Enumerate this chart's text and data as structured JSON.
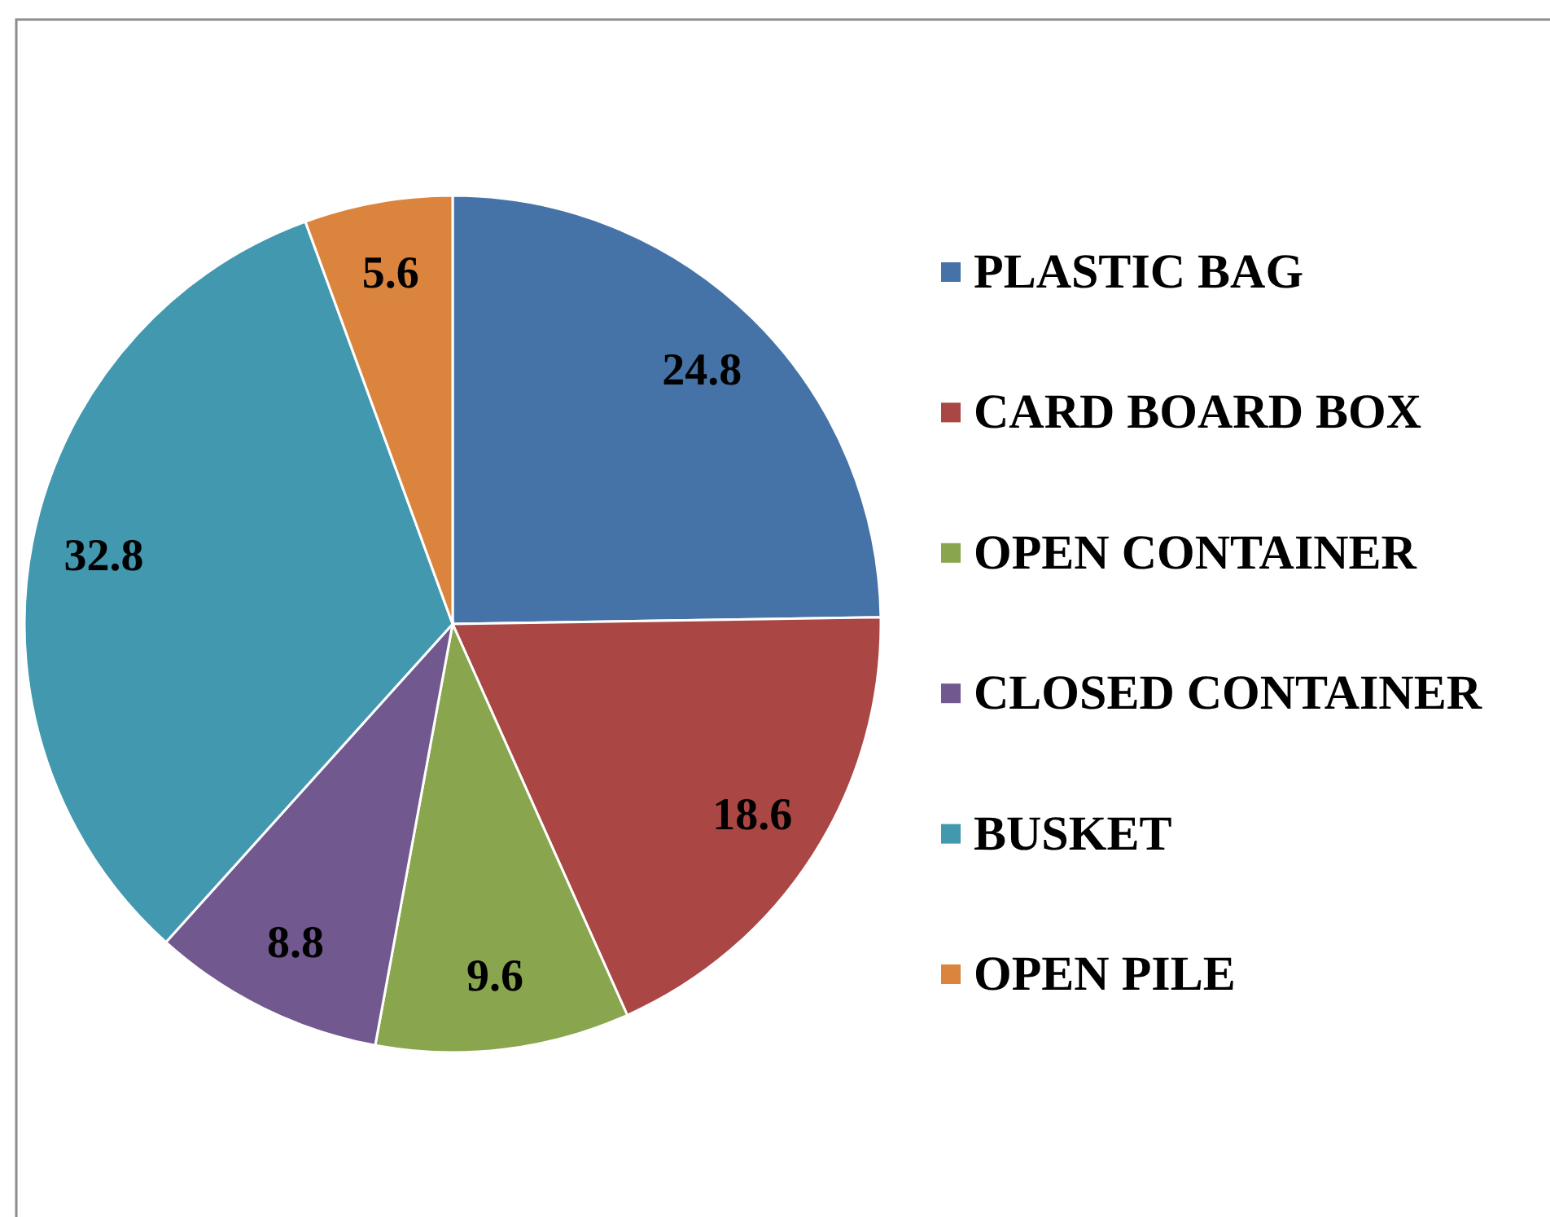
{
  "chart_data": {
    "type": "pie",
    "categories": [
      "PLASTIC BAG",
      "CARD BOARD BOX",
      "OPEN CONTAINER",
      "CLOSED CONTAINER",
      "BUSKET",
      "OPEN PILE"
    ],
    "values": [
      24.8,
      18.6,
      9.6,
      8.8,
      32.8,
      5.6
    ],
    "colors": [
      "#4572a7",
      "#aa4643",
      "#89a54e",
      "#71588f",
      "#4198af",
      "#db843d"
    ],
    "data_labels": true,
    "legend": "right"
  }
}
